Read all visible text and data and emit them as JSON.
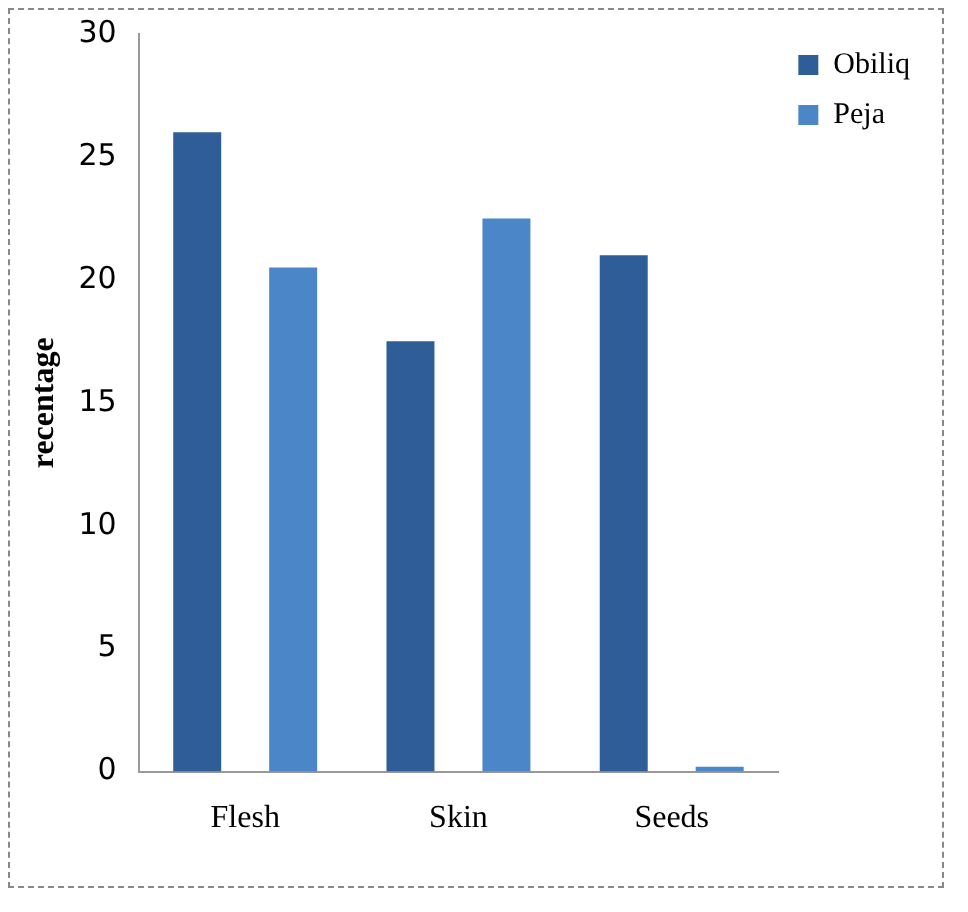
{
  "chart_data": {
    "type": "bar",
    "ylabel": "recentage",
    "categories": [
      "Flesh",
      "Skin",
      "Seeds"
    ],
    "series": [
      {
        "name": "Obiliq",
        "color": "#2e5d97",
        "values": [
          26,
          17.5,
          21
        ]
      },
      {
        "name": "Peja",
        "color": "#4a86c8",
        "values": [
          20.5,
          22.5,
          0.2
        ]
      }
    ],
    "ylim": [
      0,
      30
    ],
    "yticks": [
      0,
      5,
      10,
      15,
      20,
      25,
      30
    ],
    "grid": false,
    "legend": "top right"
  }
}
